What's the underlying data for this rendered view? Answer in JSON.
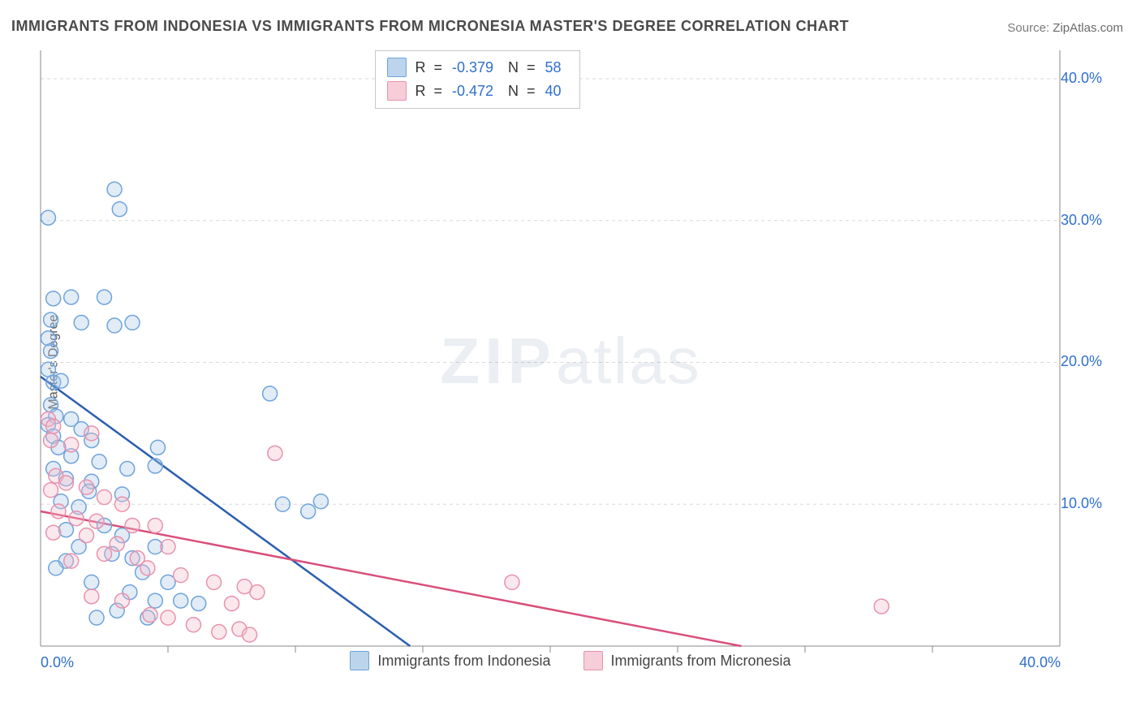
{
  "title": "IMMIGRANTS FROM INDONESIA VS IMMIGRANTS FROM MICRONESIA MASTER'S DEGREE CORRELATION CHART",
  "source_label": "Source: ",
  "source_value": "ZipAtlas.com",
  "watermark_zip": "ZIP",
  "watermark_atlas": "atlas",
  "ylabel": "Master's Degree",
  "chart": {
    "type": "scatter",
    "background_color": "#ffffff",
    "grid_color": "#d8d8d8",
    "axis_color": "#888888",
    "xlim": [
      0,
      40
    ],
    "ylim": [
      0,
      42
    ],
    "x_ticks_minor": [
      5,
      10,
      15,
      20,
      25,
      30,
      35
    ],
    "y_gridlines": [
      10,
      20,
      30,
      40
    ],
    "x_axis_labels": [
      {
        "value": "0.0%",
        "x": 0
      },
      {
        "value": "40.0%",
        "x": 40
      }
    ],
    "y_axis_labels": [
      {
        "value": "10.0%",
        "y": 10
      },
      {
        "value": "20.0%",
        "y": 20
      },
      {
        "value": "30.0%",
        "y": 30
      },
      {
        "value": "40.0%",
        "y": 40
      }
    ],
    "axis_label_color": "#2f6fd0",
    "axis_label_fontsize": 18,
    "marker_radius": 9,
    "marker_stroke_width": 1.5,
    "marker_fill_opacity": 0.35,
    "trend_line_width": 2.5,
    "series": [
      {
        "name": "Immigrants from Indonesia",
        "color_stroke": "#6fa3db",
        "color_fill": "#a9c8e8",
        "swatch_fill": "#bcd4ec",
        "swatch_stroke": "#6fa3db",
        "R": "-0.379",
        "N": "58",
        "trend": {
          "x1": 0,
          "y1": 19.0,
          "x2": 14.5,
          "y2": 0,
          "color": "#2b5fb0"
        },
        "points": [
          [
            0.3,
            30.2
          ],
          [
            2.9,
            32.2
          ],
          [
            3.1,
            30.8
          ],
          [
            0.5,
            24.5
          ],
          [
            1.2,
            24.6
          ],
          [
            2.5,
            24.6
          ],
          [
            0.4,
            23.0
          ],
          [
            1.6,
            22.8
          ],
          [
            2.9,
            22.6
          ],
          [
            3.6,
            22.8
          ],
          [
            0.3,
            21.7
          ],
          [
            0.4,
            20.8
          ],
          [
            0.3,
            19.5
          ],
          [
            0.5,
            18.6
          ],
          [
            0.8,
            18.7
          ],
          [
            9.0,
            17.8
          ],
          [
            0.4,
            17.0
          ],
          [
            0.6,
            16.2
          ],
          [
            1.2,
            16.0
          ],
          [
            0.3,
            15.6
          ],
          [
            1.6,
            15.3
          ],
          [
            0.5,
            14.8
          ],
          [
            2.0,
            14.5
          ],
          [
            0.7,
            14.0
          ],
          [
            4.6,
            14.0
          ],
          [
            1.2,
            13.4
          ],
          [
            2.3,
            13.0
          ],
          [
            3.4,
            12.5
          ],
          [
            0.5,
            12.5
          ],
          [
            1.0,
            11.8
          ],
          [
            2.0,
            11.6
          ],
          [
            1.9,
            10.9
          ],
          [
            3.2,
            10.7
          ],
          [
            4.5,
            12.7
          ],
          [
            0.8,
            10.2
          ],
          [
            1.5,
            9.8
          ],
          [
            9.5,
            10.0
          ],
          [
            10.5,
            9.5
          ],
          [
            11.0,
            10.2
          ],
          [
            2.5,
            8.5
          ],
          [
            1.0,
            8.2
          ],
          [
            3.2,
            7.8
          ],
          [
            4.5,
            7.0
          ],
          [
            1.5,
            7.0
          ],
          [
            2.8,
            6.5
          ],
          [
            3.6,
            6.2
          ],
          [
            1.0,
            6.0
          ],
          [
            0.6,
            5.5
          ],
          [
            4.0,
            5.2
          ],
          [
            5.0,
            4.5
          ],
          [
            2.0,
            4.5
          ],
          [
            3.5,
            3.8
          ],
          [
            4.5,
            3.2
          ],
          [
            5.5,
            3.2
          ],
          [
            6.2,
            3.0
          ],
          [
            3.0,
            2.5
          ],
          [
            2.2,
            2.0
          ],
          [
            4.2,
            2.0
          ]
        ]
      },
      {
        "name": "Immigrants from Micronesia",
        "color_stroke": "#e892ad",
        "color_fill": "#f3bccb",
        "swatch_fill": "#f6cdd8",
        "swatch_stroke": "#e892ad",
        "R": "-0.472",
        "N": "40",
        "trend": {
          "x1": 0,
          "y1": 9.5,
          "x2": 27.5,
          "y2": 0,
          "color": "#d94f7a"
        },
        "points": [
          [
            0.3,
            16.0
          ],
          [
            0.5,
            15.5
          ],
          [
            0.4,
            14.5
          ],
          [
            1.2,
            14.2
          ],
          [
            2.0,
            15.0
          ],
          [
            9.2,
            13.6
          ],
          [
            0.6,
            12.0
          ],
          [
            1.0,
            11.5
          ],
          [
            1.8,
            11.2
          ],
          [
            0.4,
            11.0
          ],
          [
            2.5,
            10.5
          ],
          [
            3.2,
            10.0
          ],
          [
            0.7,
            9.5
          ],
          [
            1.4,
            9.0
          ],
          [
            2.2,
            8.8
          ],
          [
            3.6,
            8.5
          ],
          [
            4.5,
            8.5
          ],
          [
            0.5,
            8.0
          ],
          [
            1.8,
            7.8
          ],
          [
            3.0,
            7.2
          ],
          [
            5.0,
            7.0
          ],
          [
            2.5,
            6.5
          ],
          [
            3.8,
            6.2
          ],
          [
            1.2,
            6.0
          ],
          [
            4.2,
            5.5
          ],
          [
            5.5,
            5.0
          ],
          [
            6.8,
            4.5
          ],
          [
            8.0,
            4.2
          ],
          [
            8.5,
            3.8
          ],
          [
            2.0,
            3.5
          ],
          [
            3.2,
            3.2
          ],
          [
            7.5,
            3.0
          ],
          [
            18.5,
            4.5
          ],
          [
            6.0,
            1.5
          ],
          [
            7.0,
            1.0
          ],
          [
            7.8,
            1.2
          ],
          [
            5.0,
            2.0
          ],
          [
            4.3,
            2.2
          ],
          [
            33.0,
            2.8
          ],
          [
            8.2,
            0.8
          ]
        ]
      }
    ]
  },
  "corr_box": {
    "R_label": "R",
    "N_label": "N",
    "eq": "="
  },
  "legend_bottom": [
    {
      "label": "Immigrants from Indonesia",
      "series_idx": 0
    },
    {
      "label": "Immigrants from Micronesia",
      "series_idx": 1
    }
  ]
}
